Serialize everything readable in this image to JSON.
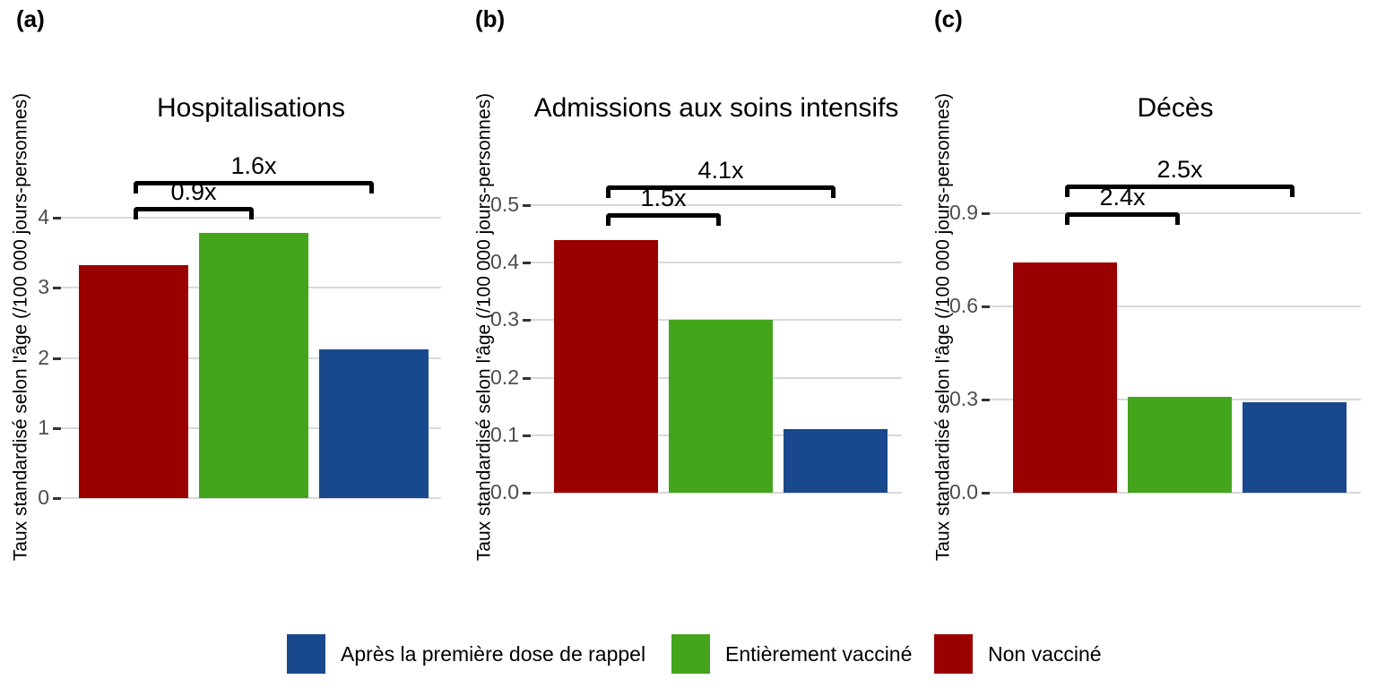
{
  "figure": {
    "background": "#FFFFFF",
    "shared_ylabel": "Taux standardisé selon l'âge (/100 000 jours-personnes)"
  },
  "colors": {
    "red": "#9B0000",
    "green": "#44A51D",
    "blue": "#18498C",
    "gridline": "#D9D9D9",
    "tick_mark": "#333333",
    "tick_label_text": "#4D4D4D",
    "bracket": "#000000"
  },
  "legend": {
    "items": [
      {
        "label": "Après la première dose de rappel",
        "color_key": "blue",
        "name": "first-booster"
      },
      {
        "label": "Entièrement vacciné",
        "color_key": "green",
        "name": "fully-vaccinated"
      },
      {
        "label": "Non vacciné",
        "color_key": "red",
        "name": "non-vaccinated"
      }
    ]
  },
  "chart_data": [
    {
      "type": "bar",
      "panel_tag": "(a)",
      "title": "Hospitalisations",
      "ylabel": "Taux standardisé selon l'âge (/100 000 jours-personnes)",
      "categories": [
        "Non vacciné",
        "Entièrement vacciné",
        "Après la première dose de rappel"
      ],
      "bar_color_keys": [
        "red",
        "green",
        "blue"
      ],
      "values": [
        3.32,
        3.78,
        2.12
      ],
      "ylim": [
        0,
        4.5
      ],
      "grid": true,
      "yticks": [
        {
          "value": 0,
          "label": "0"
        },
        {
          "value": 1,
          "label": "1"
        },
        {
          "value": 2,
          "label": "2"
        },
        {
          "value": 3,
          "label": "3"
        },
        {
          "value": 4,
          "label": "4"
        }
      ],
      "annotations": [
        {
          "label": "0.9x",
          "from": "Non vacciné",
          "to": "Entièrement vacciné"
        },
        {
          "label": "1.6x",
          "from": "Non vacciné",
          "to": "Après la première dose de rappel"
        }
      ]
    },
    {
      "type": "bar",
      "panel_tag": "(b)",
      "title": "Admissions aux soins intensifs",
      "ylabel": "Taux standardisé selon l'âge (/100 000 jours-personnes)",
      "categories": [
        "Non vacciné",
        "Entièrement vacciné",
        "Après la première dose de rappel"
      ],
      "bar_color_keys": [
        "red",
        "green",
        "blue"
      ],
      "values": [
        0.44,
        0.3,
        0.11
      ],
      "ylim": [
        0,
        0.56
      ],
      "grid": true,
      "yticks": [
        {
          "value": 0.0,
          "label": "0.0"
        },
        {
          "value": 0.1,
          "label": "0.1"
        },
        {
          "value": 0.2,
          "label": "0.2"
        },
        {
          "value": 0.3,
          "label": "0.3"
        },
        {
          "value": 0.4,
          "label": "0.4"
        },
        {
          "value": 0.5,
          "label": "0.5"
        }
      ],
      "annotations": [
        {
          "label": "1.5x",
          "from": "Non vacciné",
          "to": "Entièrement vacciné"
        },
        {
          "label": "4.1x",
          "from": "Non vacciné",
          "to": "Après la première dose de rappel"
        }
      ]
    },
    {
      "type": "bar",
      "panel_tag": "(c)",
      "title": "Décès",
      "ylabel": "Taux standardisé selon l'âge (/100 000 jours-personnes)",
      "categories": [
        "Non vacciné",
        "Entièrement vacciné",
        "Après la première dose de rappel"
      ],
      "bar_color_keys": [
        "red",
        "green",
        "blue"
      ],
      "values": [
        0.74,
        0.31,
        0.29
      ],
      "ylim": [
        0,
        1.0
      ],
      "grid": true,
      "yticks": [
        {
          "value": 0.0,
          "label": "0.0"
        },
        {
          "value": 0.3,
          "label": "0.3"
        },
        {
          "value": 0.6,
          "label": "0.6"
        },
        {
          "value": 0.9,
          "label": "0.9"
        }
      ],
      "annotations": [
        {
          "label": "2.4x",
          "from": "Non vacciné",
          "to": "Entièrement vacciné"
        },
        {
          "label": "2.5x",
          "from": "Non vacciné",
          "to": "Après la première dose de rappel"
        }
      ]
    }
  ]
}
